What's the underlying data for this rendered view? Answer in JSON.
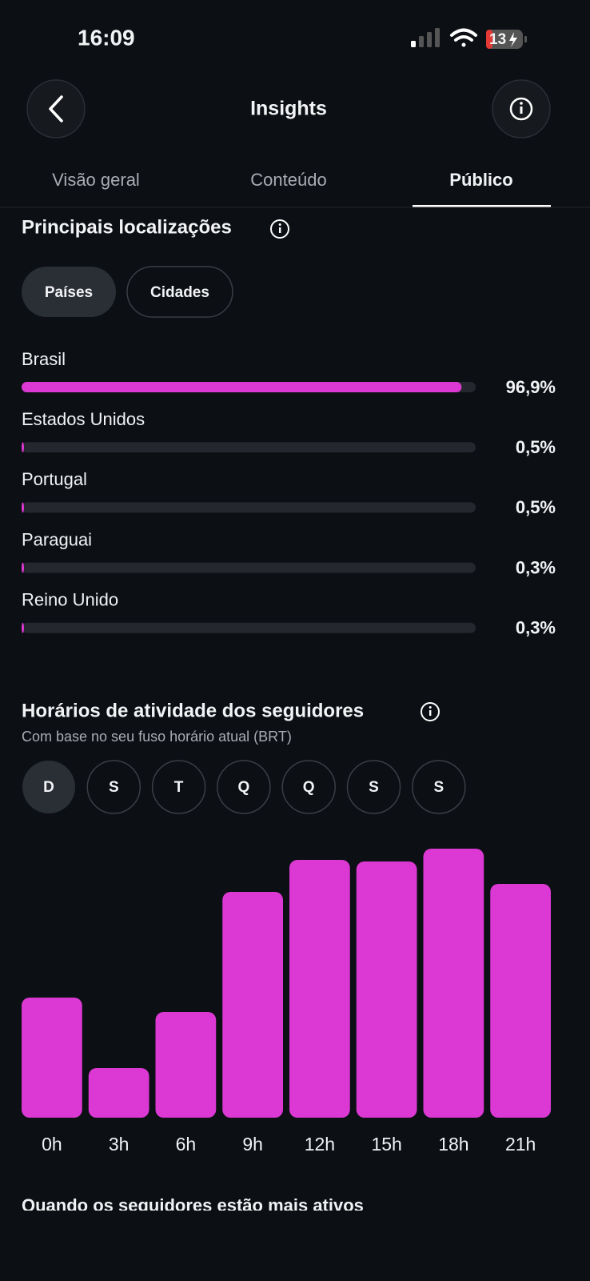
{
  "status_bar": {
    "time": "16:09",
    "battery": "13"
  },
  "header": {
    "title": "Insights"
  },
  "tabs": {
    "items": [
      "Visão geral",
      "Conteúdo",
      "Público"
    ],
    "active": 2
  },
  "locations": {
    "filters": [
      "Países",
      "Cidades"
    ],
    "active_filter": 0
  },
  "activity": {
    "days": [
      "D",
      "S",
      "T",
      "Q",
      "Q",
      "S",
      "S"
    ],
    "active_day": 0
  },
  "footer": {
    "title": "Quando os seguidores estão mais ativos"
  },
  "chart_data": [
    {
      "type": "hbar",
      "title": "Principais localizações",
      "categories": [
        "Brasil",
        "Estados Unidos",
        "Portugal",
        "Paraguai",
        "Reino Unido"
      ],
      "values": [
        96.9,
        0.5,
        0.5,
        0.3,
        0.3
      ],
      "value_labels": [
        "96,9%",
        "0,5%",
        "0,5%",
        "0,3%",
        "0,3%"
      ],
      "xlim": [
        0,
        100
      ],
      "color": "#dc38d3"
    },
    {
      "type": "bar",
      "title": "Horários de atividade dos seguidores",
      "subtitle": "Com base no seu fuso horário atual (BRT)",
      "categories": [
        "0h",
        "3h",
        "6h",
        "9h",
        "12h",
        "15h",
        "18h",
        "21h"
      ],
      "values": [
        150,
        62,
        132,
        282,
        322,
        320,
        336,
        292
      ],
      "ylim": [
        0,
        340
      ],
      "color": "#dc38d3"
    }
  ]
}
